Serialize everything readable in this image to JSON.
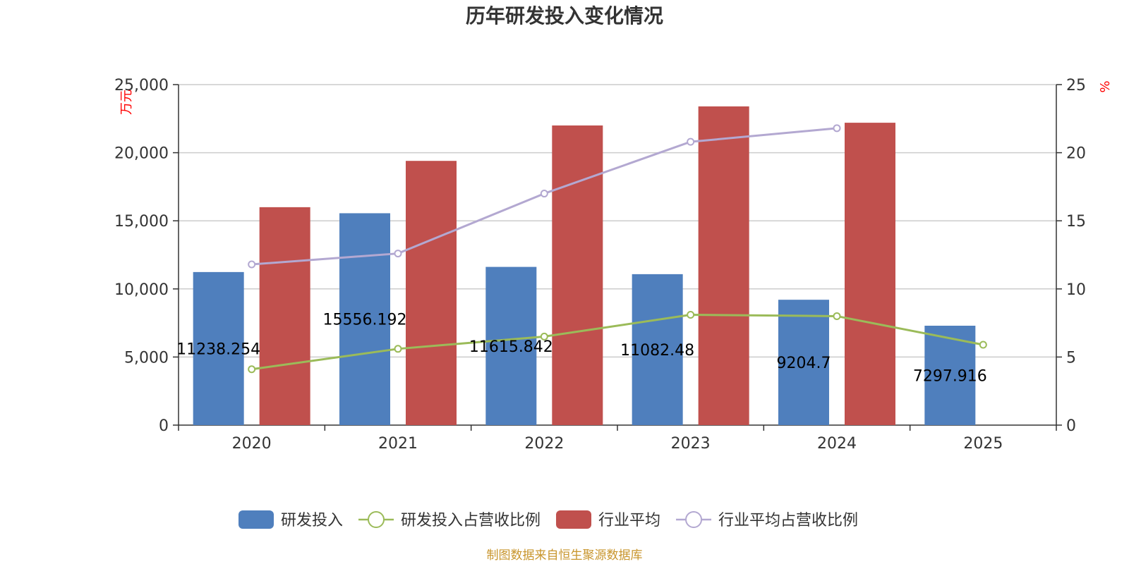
{
  "chart_data": {
    "type": "bar",
    "title": "历年研发投入变化情况",
    "categories": [
      "2020",
      "2021",
      "2022",
      "2023",
      "2024",
      "2025"
    ],
    "y_left": {
      "unit": "万元",
      "ticks": [
        "0",
        "5,000",
        "10,000",
        "15,000",
        "20,000",
        "25,000"
      ],
      "range": [
        0,
        25000
      ]
    },
    "y_right": {
      "unit": "%",
      "ticks": [
        "0",
        "5",
        "10",
        "15",
        "20",
        "25"
      ],
      "range": [
        0,
        25
      ]
    },
    "series": [
      {
        "name": "研发投入",
        "kind": "bar",
        "axis": "left",
        "color": "#4f7fbd",
        "values": [
          11238.254,
          15556.192,
          11615.842,
          11082.48,
          9204.7,
          7297.916
        ],
        "labels": [
          "11238.254",
          "15556.192",
          "11615.842",
          "11082.48",
          "9204.7",
          "7297.916"
        ]
      },
      {
        "name": "研发投入占营收比例",
        "kind": "line",
        "axis": "right",
        "color": "#9bbb59",
        "values": [
          4.1,
          5.6,
          6.5,
          8.1,
          8.0,
          5.9
        ]
      },
      {
        "name": "行业平均",
        "kind": "bar",
        "axis": "left",
        "color": "#c0504d",
        "values": [
          16000,
          19400,
          22000,
          23400,
          22200,
          null
        ]
      },
      {
        "name": "行业平均占营收比例",
        "kind": "line",
        "axis": "right",
        "color": "#b3a8d1",
        "values": [
          11.8,
          12.6,
          17.0,
          20.8,
          21.8,
          null
        ]
      }
    ],
    "grid": true,
    "legend": "bottom-center"
  },
  "footer": {
    "source": "制图数据来自恒生聚源数据库"
  }
}
